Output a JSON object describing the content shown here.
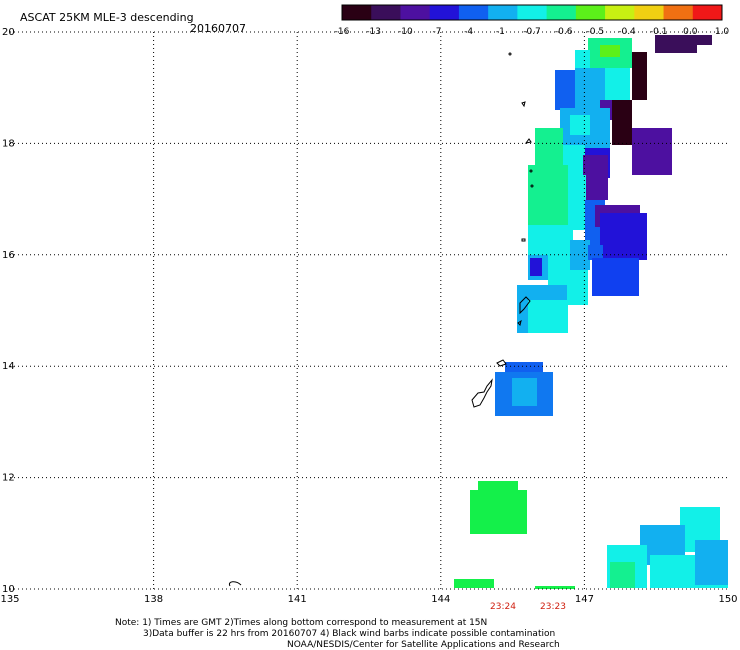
{
  "header": {
    "title": "ASCAT 25KM MLE-3 descending",
    "date": "20160707"
  },
  "colorbar": {
    "labels": [
      "-16",
      "-13",
      "-10",
      "-7",
      "-4",
      "-1",
      "-0.7",
      "-0.6",
      "-0.5",
      "-0.4",
      "-0.1",
      "0.0",
      "1.0"
    ],
    "colors": [
      "#2a0014",
      "#3a0e5a",
      "#4d10a0",
      "#2212d8",
      "#1060f0",
      "#12b0f0",
      "#12f0e8",
      "#14f090",
      "#5cf01a",
      "#c8f012",
      "#f0d012",
      "#f07012",
      "#f01818"
    ]
  },
  "map": {
    "lon_ticks": [
      135,
      138,
      141,
      144,
      147,
      150
    ],
    "lat_ticks": [
      10,
      12,
      14,
      16,
      18,
      20
    ],
    "lon_range": [
      135,
      150
    ],
    "lat_range": [
      10,
      20
    ]
  },
  "times": [
    "23:24",
    "23:23"
  ],
  "notes": [
    "Note: 1) Times are GMT 2)Times along bottom correspond to measurement at 15N",
    "3)Data buffer is 22 hrs from 20160707 4) Black wind barbs indicate possible contamination",
    "NOAA/NESDIS/Center for Satellite Applications and Research"
  ]
}
